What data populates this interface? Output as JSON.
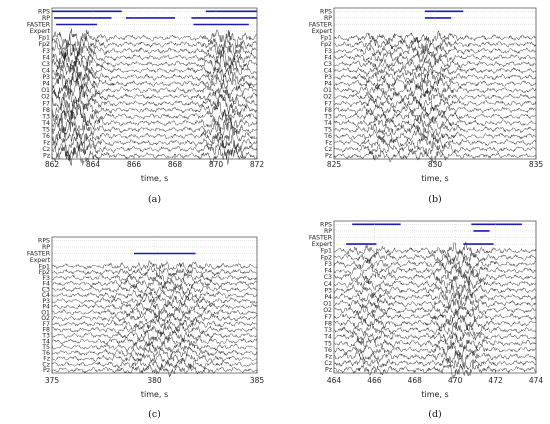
{
  "colors": {
    "annotation_bar": "#1a1ab4",
    "trace": "#222222",
    "axis": "#444444",
    "grid": "#bbbbbb"
  },
  "chart_data": [
    {
      "type": "line",
      "caption": "(a)",
      "xlabel": "time, s",
      "xlim": [
        862,
        872
      ],
      "xticks": [
        862,
        864,
        866,
        868,
        870,
        872
      ],
      "annotation_rows": [
        "RPS",
        "RP",
        "FASTER",
        "Expert"
      ],
      "channels": [
        "Fp1",
        "Fp2",
        "F3",
        "F4",
        "C3",
        "C4",
        "P3",
        "P4",
        "O1",
        "O2",
        "F7",
        "F8",
        "T3",
        "T4",
        "T5",
        "T6",
        "Fz",
        "Cz",
        "Pz"
      ],
      "annotations": [
        {
          "row": "RPS",
          "start": 862.0,
          "end": 865.4
        },
        {
          "row": "RPS",
          "start": 869.5,
          "end": 872.0
        },
        {
          "row": "RP",
          "start": 862.1,
          "end": 864.9
        },
        {
          "row": "RP",
          "start": 865.6,
          "end": 868.0
        },
        {
          "row": "RP",
          "start": 868.8,
          "end": 872.0
        },
        {
          "row": "FASTER",
          "start": 862.2,
          "end": 864.2
        },
        {
          "row": "FASTER",
          "start": 868.9,
          "end": 871.6
        }
      ],
      "activity": [
        {
          "center": 863.0,
          "width": 1.1,
          "amp": 3.2
        },
        {
          "center": 870.5,
          "width": 0.9,
          "amp": 2.6
        }
      ]
    },
    {
      "type": "line",
      "caption": "(b)",
      "xlabel": "time, s",
      "xlim": [
        825,
        835
      ],
      "xticks": [
        825,
        830,
        835
      ],
      "annotation_rows": [
        "RPS",
        "RP",
        "FASTER",
        "Expert"
      ],
      "channels": [
        "Fp1",
        "Fp2",
        "F3",
        "F4",
        "C3",
        "C4",
        "P3",
        "P4",
        "O1",
        "O2",
        "F7",
        "F8",
        "T3",
        "T4",
        "T5",
        "T6",
        "Fz",
        "Cz",
        "Pz"
      ],
      "annotations": [
        {
          "row": "RPS",
          "start": 829.5,
          "end": 831.4
        },
        {
          "row": "RP",
          "start": 829.5,
          "end": 830.8
        }
      ],
      "activity": [
        {
          "center": 829.6,
          "width": 1.2,
          "amp": 1.8
        },
        {
          "center": 827.2,
          "width": 0.8,
          "amp": 1.3
        }
      ]
    },
    {
      "type": "line",
      "caption": "(c)",
      "xlabel": "time, s",
      "xlim": [
        375,
        385
      ],
      "xticks": [
        375,
        380,
        385
      ],
      "annotation_rows": [
        "RPS",
        "RP",
        "FASTER",
        "Expert"
      ],
      "channels": [
        "Fp1",
        "Fp2",
        "F3",
        "F4",
        "C3",
        "C4",
        "P3",
        "P4",
        "O1",
        "O2",
        "F7",
        "F8",
        "T3",
        "T4",
        "T5",
        "T6",
        "Fz",
        "Cz",
        "Pz"
      ],
      "annotations": [
        {
          "row": "FASTER",
          "start": 379.0,
          "end": 382.0
        }
      ],
      "activity": [
        {
          "center": 380.5,
          "width": 2.2,
          "amp": 1.5
        }
      ]
    },
    {
      "type": "line",
      "caption": "(d)",
      "xlabel": "time, s",
      "xlim": [
        464,
        474
      ],
      "xticks": [
        464,
        466,
        468,
        470,
        472,
        474
      ],
      "annotation_rows": [
        "RPS",
        "RP",
        "FASTER",
        "Expert"
      ],
      "channels": [
        "Fp1",
        "Fp2",
        "F3",
        "F4",
        "C3",
        "C4",
        "P3",
        "P4",
        "O1",
        "O2",
        "F7",
        "F8",
        "T3",
        "T4",
        "T5",
        "T6",
        "Fz",
        "Cz",
        "Pz"
      ],
      "annotations": [
        {
          "row": "RPS",
          "start": 464.9,
          "end": 467.3
        },
        {
          "row": "RPS",
          "start": 470.8,
          "end": 473.3
        },
        {
          "row": "RP",
          "start": 470.9,
          "end": 471.7
        },
        {
          "row": "Expert",
          "start": 464.6,
          "end": 466.1
        },
        {
          "row": "Expert",
          "start": 470.4,
          "end": 471.9
        }
      ],
      "activity": [
        {
          "center": 470.2,
          "width": 1.1,
          "amp": 2.0
        },
        {
          "center": 465.8,
          "width": 1.0,
          "amp": 1.2
        }
      ]
    }
  ]
}
